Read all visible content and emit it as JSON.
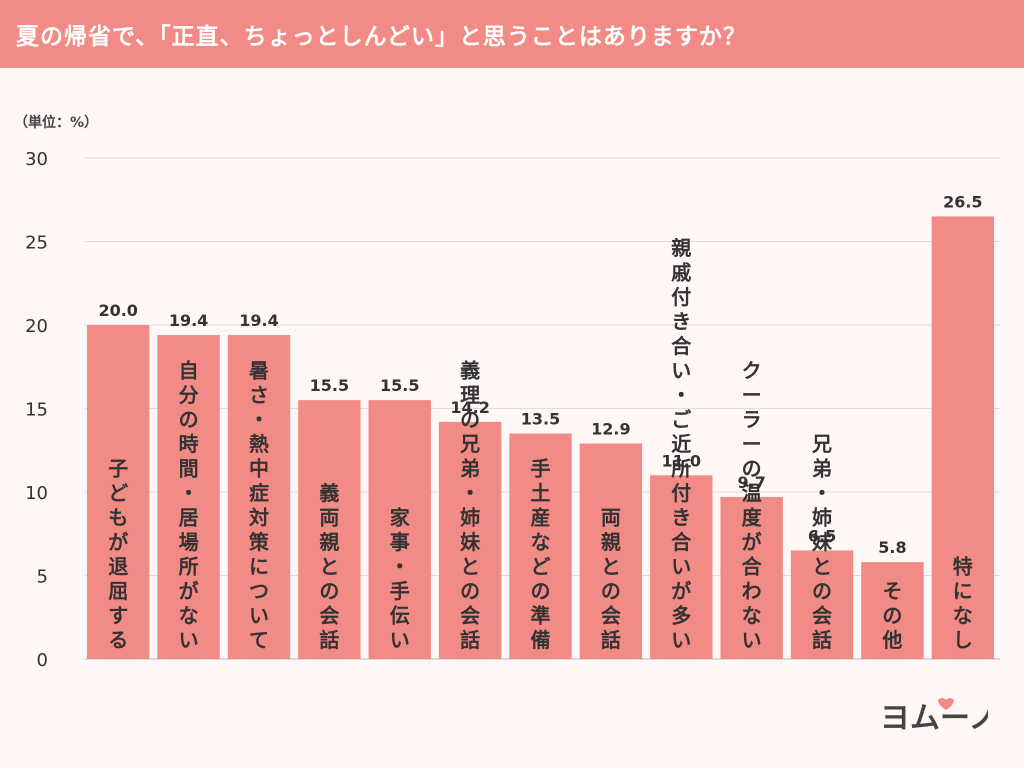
{
  "header": {
    "title": "夏の帰省で、「正直、ちょっとしんどい」と思うことはありますか？"
  },
  "unit_label": "（単位：%）",
  "logo_text": "ヨムーノ",
  "colors": {
    "header": "#f28a85",
    "bar": "#f28a85",
    "background": "#fff7f6",
    "grid": "#dddddd",
    "text": "#333333"
  },
  "chart_data": {
    "type": "bar",
    "title": "夏の帰省で、「正直、ちょっとしんどい」と思うことはありますか？",
    "ylabel": "（単位：%）",
    "xlabel": "",
    "ylim": [
      0,
      30
    ],
    "yticks": [
      0,
      5,
      10,
      15,
      20,
      25,
      30
    ],
    "grid": true,
    "categories": [
      "子どもが退屈する",
      "自分の時間・居場所がない",
      "暑さ・熱中症対策について",
      "義両親との会話",
      "家事・手伝い",
      "義理の兄弟・姉妹との会話",
      "手土産などの準備",
      "両親との会話",
      "親戚付き合い・ご近所付き合いが多い",
      "クーラーの温度が合わない",
      "兄弟・姉妹との会話",
      "その他",
      "特になし"
    ],
    "values": [
      20.0,
      19.4,
      19.4,
      15.5,
      15.5,
      14.2,
      13.5,
      12.9,
      11.0,
      9.7,
      6.5,
      5.8,
      26.5
    ],
    "value_labels": [
      "20.0",
      "19.4",
      "19.4",
      "15.5",
      "15.5",
      "14.2",
      "13.5",
      "12.9",
      "11.0",
      "9.7",
      "6.5",
      "5.8",
      "26.5"
    ]
  }
}
